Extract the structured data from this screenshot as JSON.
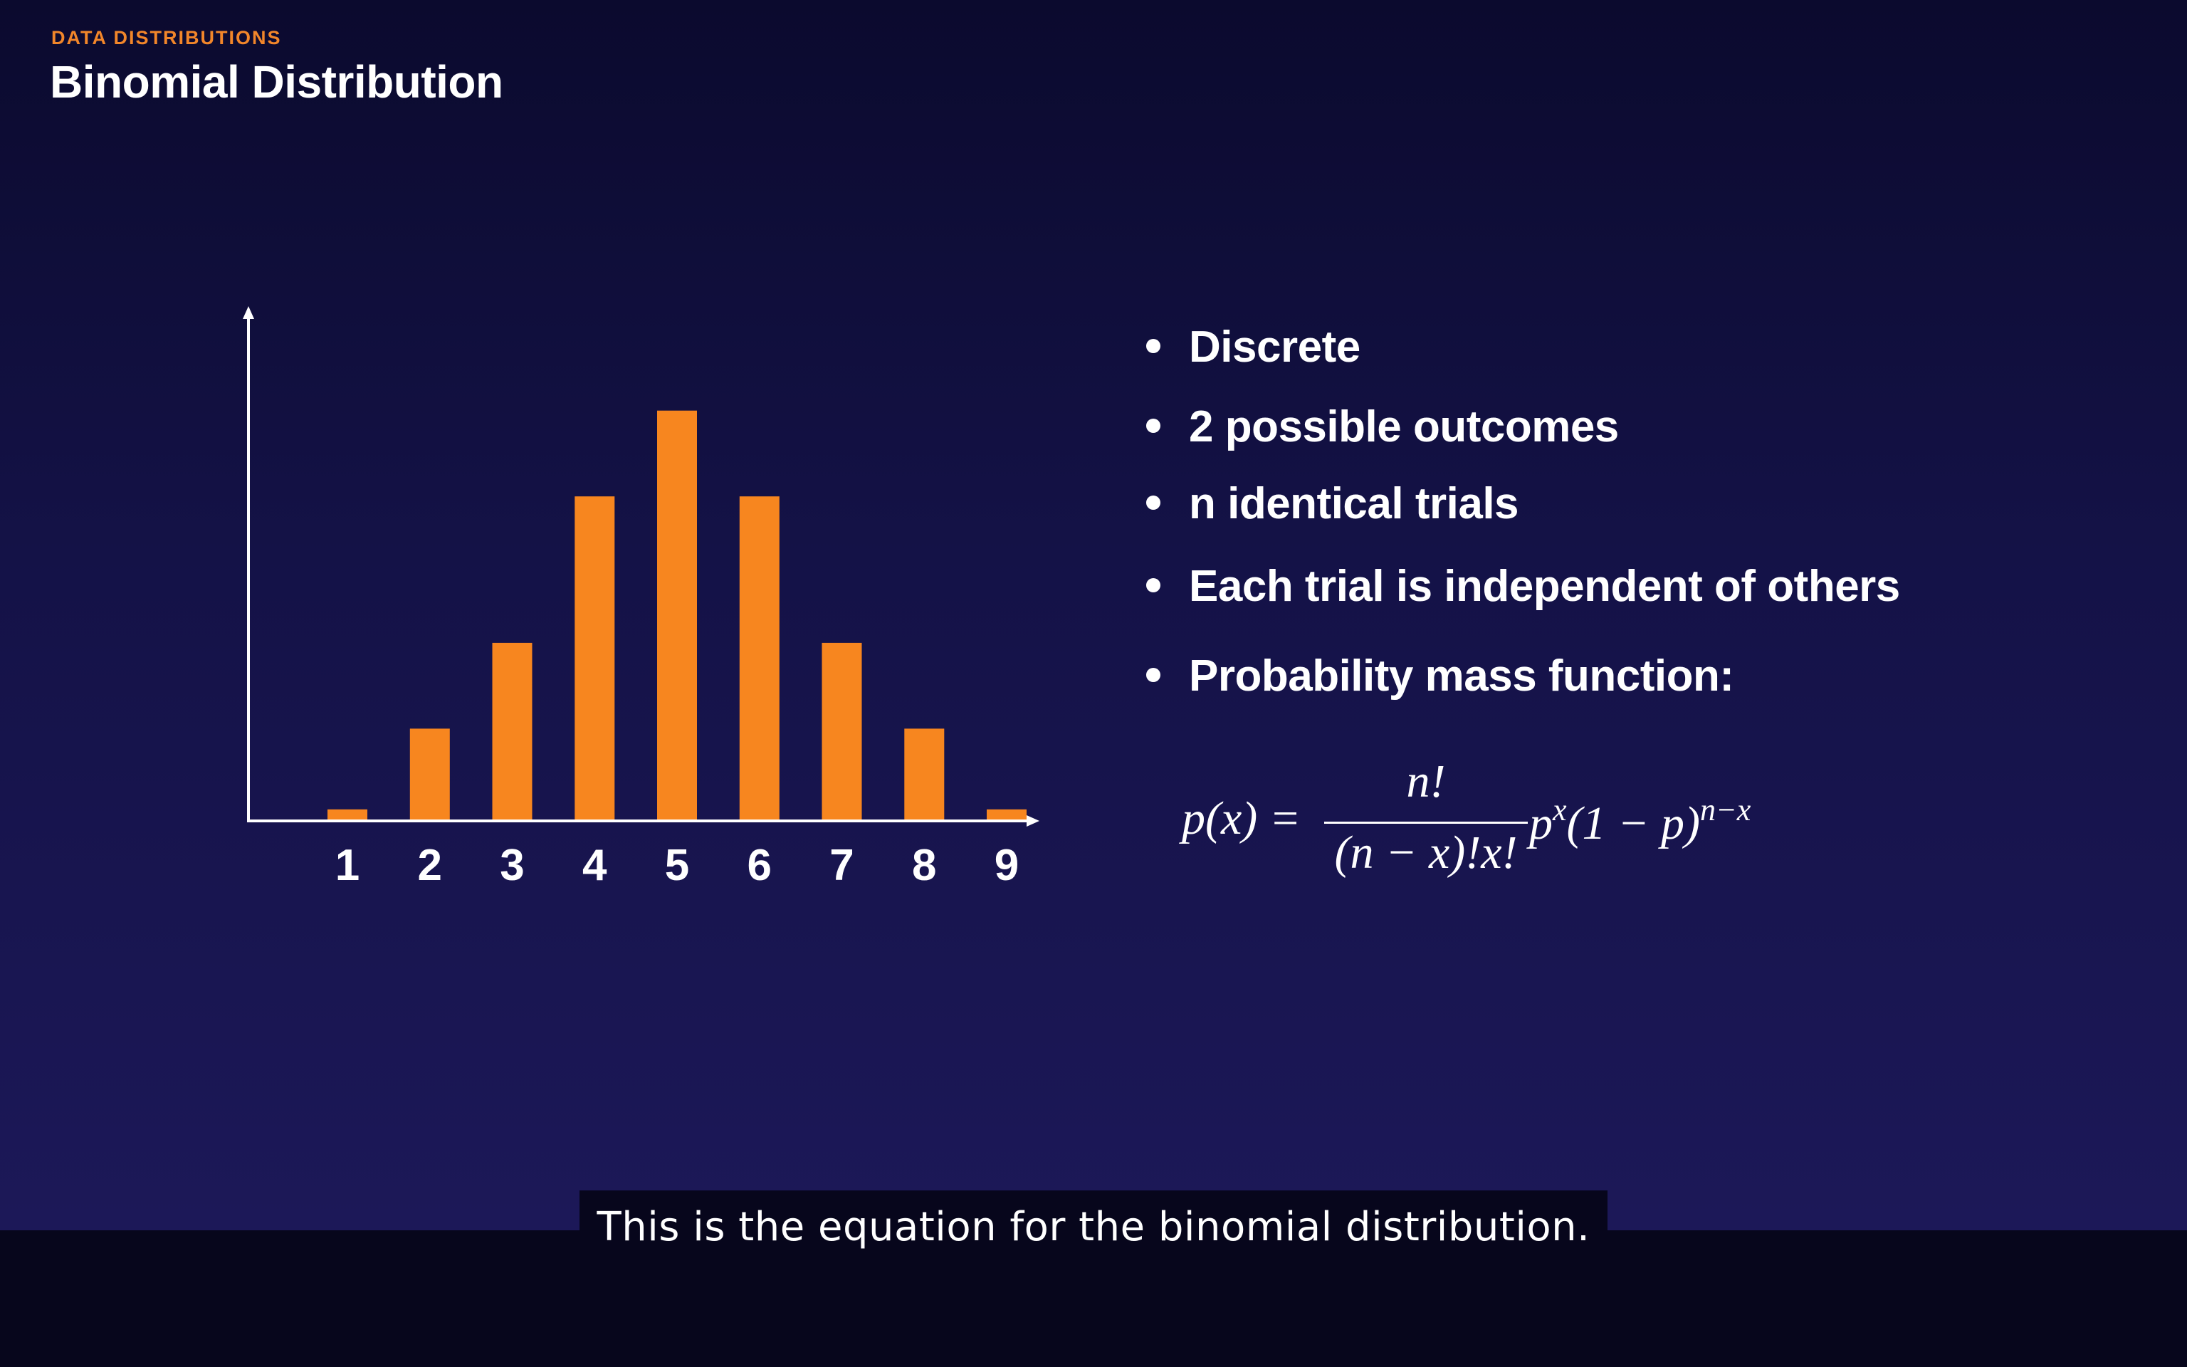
{
  "slide": {
    "eyebrow": "DATA DISTRIBUTIONS",
    "title": "Binomial Distribution"
  },
  "bullets": [
    "Discrete",
    "2 possible outcomes",
    "n identical trials",
    "Each trial is independent of others",
    "Probability mass function:"
  ],
  "formula": {
    "lhs": "p(x) =",
    "numerator": "n!",
    "denominator": "(n − x)!x!",
    "rhs_base": "p",
    "rhs_exp1": "x",
    "rhs_mid": "(1 − p)",
    "rhs_exp2": "n−x"
  },
  "caption": "This is the equation for the binomial distribution.",
  "colors": {
    "bar": "#f7861f",
    "eyebrow": "#f2862a",
    "text": "#ffffff"
  },
  "chart_data": {
    "type": "bar",
    "categories": [
      "1",
      "2",
      "3",
      "4",
      "5",
      "6",
      "7",
      "8",
      "9"
    ],
    "values": [
      2,
      18,
      35,
      64,
      81,
      64,
      35,
      18,
      2
    ],
    "title": "",
    "xlabel": "",
    "ylabel": "",
    "ylim": [
      0,
      100
    ],
    "grid": false,
    "legend": "none"
  }
}
